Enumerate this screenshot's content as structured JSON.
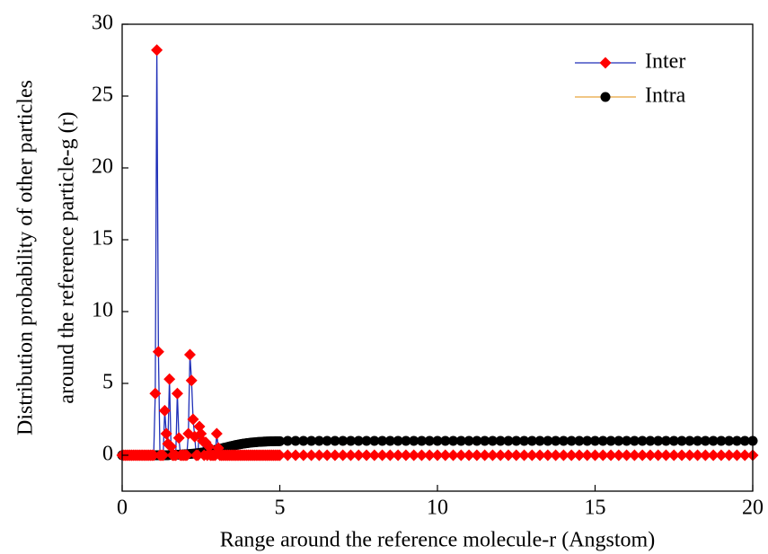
{
  "chart_data": {
    "type": "line",
    "xlabel": "Range around the reference molecule-r (Angstom)",
    "ylabel": [
      "Distribution probability of other particles",
      "around the reference particle-g (r)"
    ],
    "xlim": [
      0,
      20
    ],
    "ylim": [
      -2.5,
      30
    ],
    "xticks": [
      0,
      5,
      10,
      15,
      20
    ],
    "yticks": [
      0,
      5,
      10,
      15,
      20,
      25,
      30
    ],
    "legend": "upper-right",
    "x": [
      0,
      0.05,
      0.1,
      0.15,
      0.2,
      0.25,
      0.3,
      0.35,
      0.4,
      0.45,
      0.5,
      0.55,
      0.6,
      0.65,
      0.7,
      0.75,
      0.8,
      0.85,
      0.9,
      0.95,
      1,
      1.05,
      1.1,
      1.15,
      1.2,
      1.25,
      1.3,
      1.35,
      1.4,
      1.45,
      1.5,
      1.55,
      1.6,
      1.65,
      1.7,
      1.75,
      1.8,
      1.85,
      1.9,
      1.95,
      2,
      2.05,
      2.1,
      2.15,
      2.2,
      2.25,
      2.3,
      2.35,
      2.4,
      2.45,
      2.5,
      2.55,
      2.6,
      2.65,
      2.7,
      2.75,
      2.8,
      2.85,
      2.9,
      2.95,
      3,
      3.05,
      3.1,
      3.15,
      3.2,
      3.25,
      3.3,
      3.35,
      3.4,
      3.45,
      3.5,
      3.55,
      3.6,
      3.65,
      3.7,
      3.75,
      3.8,
      3.85,
      3.9,
      3.95,
      4,
      4.05,
      4.1,
      4.15,
      4.2,
      4.25,
      4.3,
      4.35,
      4.4,
      4.45,
      4.5,
      4.55,
      4.6,
      4.65,
      4.7,
      4.75,
      4.8,
      4.85,
      4.9,
      4.95,
      5,
      5.25,
      5.5,
      5.75,
      6,
      6.25,
      6.5,
      6.75,
      7,
      7.25,
      7.5,
      7.75,
      8,
      8.25,
      8.5,
      8.75,
      9,
      9.25,
      9.5,
      9.75,
      10,
      10.25,
      10.5,
      10.75,
      11,
      11.25,
      11.5,
      11.75,
      12,
      12.25,
      12.5,
      12.75,
      13,
      13.25,
      13.5,
      13.75,
      14,
      14.25,
      14.5,
      14.75,
      15,
      15.25,
      15.5,
      15.75,
      16,
      16.25,
      16.5,
      16.75,
      17,
      17.25,
      17.5,
      17.75,
      18,
      18.25,
      18.5,
      18.75,
      19,
      19.25,
      19.5,
      19.75,
      20
    ],
    "series": [
      {
        "name": "Intra",
        "color": "#e8a33c",
        "marker": "circle",
        "marker_color": "#000000",
        "values": [
          0,
          0,
          0,
          0,
          0,
          0,
          0,
          0,
          0,
          0,
          0,
          0,
          0,
          0,
          0,
          0,
          0,
          0,
          0,
          0,
          0,
          0,
          0,
          0,
          0,
          0,
          0,
          0,
          0,
          0,
          0.02,
          0.03,
          0.03,
          0.03,
          0.04,
          0.04,
          0.04,
          0.05,
          0.05,
          0.06,
          0.07,
          0.07,
          0.08,
          0.09,
          0.1,
          0.11,
          0.12,
          0.13,
          0.15,
          0.16,
          0.18,
          0.19,
          0.21,
          0.23,
          0.25,
          0.27,
          0.29,
          0.32,
          0.34,
          0.37,
          0.39,
          0.42,
          0.45,
          0.47,
          0.5,
          0.53,
          0.55,
          0.58,
          0.61,
          0.63,
          0.66,
          0.68,
          0.71,
          0.73,
          0.75,
          0.77,
          0.79,
          0.81,
          0.82,
          0.84,
          0.85,
          0.87,
          0.88,
          0.89,
          0.9,
          0.91,
          0.92,
          0.93,
          0.93,
          0.94,
          0.95,
          0.95,
          0.96,
          0.96,
          0.97,
          0.97,
          0.97,
          0.98,
          0.98,
          0.98,
          0.98,
          1,
          1,
          1,
          1,
          1,
          1,
          1,
          1,
          1,
          1,
          1,
          1,
          1,
          1,
          1,
          1,
          1,
          1,
          1,
          1,
          1,
          1,
          1,
          1,
          1,
          1,
          1,
          1,
          1,
          1,
          1,
          1,
          1,
          1,
          1,
          1,
          1,
          1,
          1,
          1,
          1,
          1,
          1,
          1,
          1,
          1,
          1,
          1,
          1,
          1,
          1,
          1,
          1,
          1,
          1,
          1,
          1,
          1,
          1,
          1
        ]
      },
      {
        "name": "Inter",
        "color": "#1f2fb8",
        "marker": "diamond",
        "marker_color": "#ff0000",
        "values": [
          0,
          0,
          0,
          0,
          0,
          0,
          0,
          0,
          0,
          0,
          0,
          0,
          0,
          0,
          0,
          0,
          0,
          0,
          0,
          0,
          0,
          4.3,
          28.2,
          7.2,
          0,
          0,
          0,
          3.1,
          1.5,
          0.8,
          5.3,
          0.6,
          0,
          0,
          0,
          4.3,
          1.2,
          0,
          0,
          0,
          0,
          0,
          1.5,
          7.0,
          5.2,
          2.5,
          1.3,
          0,
          0,
          2.0,
          1.5,
          1.0,
          0,
          0.9,
          0,
          0.6,
          0,
          0,
          0,
          0,
          1.5,
          0.5,
          0,
          0,
          0,
          0,
          0,
          0,
          0,
          0,
          0,
          0,
          0,
          0,
          0,
          0,
          0,
          0,
          0,
          0,
          0,
          0,
          0,
          0,
          0,
          0,
          0,
          0,
          0,
          0,
          0,
          0,
          0,
          0,
          0,
          0,
          0,
          0,
          0,
          0,
          0,
          0,
          0,
          0,
          0,
          0,
          0,
          0,
          0,
          0,
          0,
          0,
          0,
          0,
          0,
          0,
          0,
          0,
          0,
          0,
          0,
          0,
          0,
          0,
          0,
          0,
          0,
          0,
          0,
          0,
          0,
          0,
          0,
          0,
          0,
          0,
          0,
          0,
          0,
          0,
          0,
          0,
          0,
          0,
          0,
          0,
          0,
          0,
          0,
          0,
          0,
          0,
          0,
          0,
          0,
          0,
          0,
          0,
          0,
          0,
          0
        ]
      }
    ]
  }
}
